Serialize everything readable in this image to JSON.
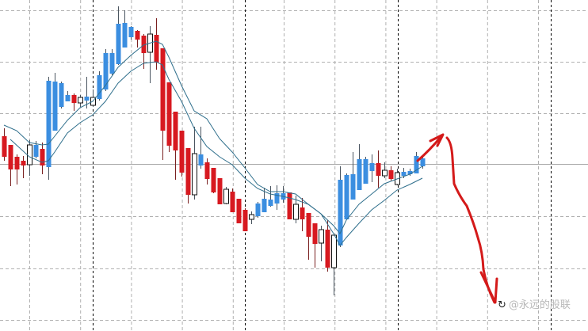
{
  "chart_data": {
    "type": "candlestick",
    "title": "",
    "xlabel": "",
    "ylabel": "",
    "grid": true,
    "ylim": [
      0,
      418
    ],
    "colors": {
      "bull": "#3b8ee0",
      "bear": "#d71920",
      "hollow": "#ffffff",
      "moving_average": "#2f6f8c",
      "grid": "#b0b0b0",
      "period_separator": "#000000",
      "annotation": "#d41a1a"
    },
    "candles_ohlc": [
      [
        246,
        256,
        215,
        220
      ],
      [
        235,
        235,
        183,
        204
      ],
      [
        220,
        223,
        185,
        204
      ],
      [
        215,
        221,
        193,
        209
      ],
      [
        210,
        241,
        196,
        235
      ],
      [
        220,
        240,
        218,
        235
      ],
      [
        230,
        238,
        198,
        209
      ],
      [
        207,
        321,
        191,
        316
      ],
      [
        253,
        326,
        253,
        315
      ],
      [
        283,
        315,
        281,
        313
      ],
      [
        290,
        303,
        290,
        298
      ],
      [
        298,
        300,
        278,
        288
      ],
      [
        288,
        298,
        283,
        295
      ],
      [
        291,
        321,
        281,
        296
      ],
      [
        285,
        305,
        283,
        295
      ],
      [
        293,
        328,
        291,
        323
      ],
      [
        305,
        356,
        303,
        351
      ],
      [
        325,
        356,
        323,
        351
      ],
      [
        337,
        410,
        336,
        388
      ],
      [
        358,
        405,
        358,
        389
      ],
      [
        371,
        385,
        368,
        384
      ],
      [
        379,
        380,
        358,
        368
      ],
      [
        373,
        375,
        331,
        351
      ],
      [
        352,
        385,
        313,
        375
      ],
      [
        374,
        395,
        330,
        339
      ],
      [
        357,
        357,
        216,
        253
      ],
      [
        314,
        314,
        226,
        234
      ],
      [
        277,
        277,
        191,
        228
      ],
      [
        253,
        253,
        195,
        200
      ],
      [
        231,
        231,
        161,
        172
      ],
      [
        172,
        258,
        166,
        224
      ],
      [
        209,
        258,
        205,
        223
      ],
      [
        213,
        218,
        185,
        192
      ],
      [
        206,
        206,
        174,
        175
      ],
      [
        193,
        193,
        160,
        160
      ],
      [
        161,
        182,
        160,
        179
      ],
      [
        176,
        180,
        150,
        150
      ],
      [
        167,
        167,
        136,
        136
      ],
      [
        153,
        155,
        126,
        126
      ],
      [
        141,
        151,
        135,
        147
      ],
      [
        145,
        163,
        143,
        161
      ],
      [
        150,
        181,
        150,
        167
      ],
      [
        158,
        183,
        157,
        166
      ],
      [
        161,
        184,
        153,
        174
      ],
      [
        166,
        183,
        162,
        174
      ],
      [
        175,
        175,
        141,
        141
      ],
      [
        141,
        171,
        136,
        160
      ],
      [
        156,
        168,
        126,
        141
      ],
      [
        149,
        149,
        90,
        119
      ],
      [
        136,
        136,
        80,
        110
      ],
      [
        111,
        133,
        88,
        128
      ],
      [
        128,
        140,
        75,
        80
      ],
      [
        80,
        121,
        45,
        121
      ],
      [
        108,
        208,
        106,
        191
      ],
      [
        141,
        199,
        141,
        197
      ],
      [
        166,
        226,
        166,
        198
      ],
      [
        178,
        236,
        178,
        217
      ],
      [
        186,
        220,
        186,
        217
      ],
      [
        202,
        223,
        188,
        212
      ],
      [
        212,
        228,
        181,
        196
      ],
      [
        196,
        213,
        193,
        203
      ],
      [
        203,
        208,
        190,
        192
      ],
      [
        185,
        205,
        184,
        200
      ],
      [
        196,
        206,
        193,
        201
      ],
      [
        198,
        205,
        196,
        202
      ],
      [
        199,
        226,
        199,
        221
      ],
      [
        208,
        222,
        205,
        218
      ]
    ],
    "hollow_candles": [
      4,
      12,
      14,
      23,
      30,
      35,
      39,
      46,
      50,
      52,
      60,
      62
    ],
    "moving_averages": [
      {
        "points": [
          [
            0,
            260
          ],
          [
            2,
            253
          ],
          [
            4,
            238
          ],
          [
            6,
            235
          ],
          [
            7,
            236
          ],
          [
            8,
            246
          ],
          [
            10,
            266
          ],
          [
            12,
            282
          ],
          [
            14,
            290
          ],
          [
            16,
            310
          ],
          [
            18,
            333
          ],
          [
            20,
            348
          ],
          [
            22,
            361
          ],
          [
            24,
            366
          ],
          [
            25,
            362
          ],
          [
            26,
            346
          ],
          [
            28,
            310
          ],
          [
            30,
            278
          ],
          [
            32,
            268
          ],
          [
            34,
            243
          ],
          [
            36,
            226
          ],
          [
            38,
            206
          ],
          [
            40,
            185
          ],
          [
            42,
            176
          ],
          [
            44,
            176
          ],
          [
            46,
            173
          ],
          [
            48,
            160
          ],
          [
            50,
            148
          ],
          [
            52,
            133
          ],
          [
            53,
            123
          ],
          [
            54,
            140
          ],
          [
            56,
            160
          ],
          [
            58,
            173
          ],
          [
            60,
            186
          ],
          [
            62,
            192
          ],
          [
            64,
            198
          ],
          [
            66,
            208
          ]
        ]
      },
      {
        "points": [
          [
            1,
            242
          ],
          [
            4,
            220
          ],
          [
            6,
            213
          ],
          [
            7,
            215
          ],
          [
            8,
            226
          ],
          [
            10,
            250
          ],
          [
            12,
            263
          ],
          [
            14,
            273
          ],
          [
            16,
            290
          ],
          [
            18,
            313
          ],
          [
            20,
            328
          ],
          [
            22,
            338
          ],
          [
            24,
            340
          ],
          [
            25,
            336
          ],
          [
            26,
            318
          ],
          [
            28,
            290
          ],
          [
            30,
            256
          ],
          [
            32,
            233
          ],
          [
            34,
            220
          ],
          [
            36,
            210
          ],
          [
            38,
            193
          ],
          [
            40,
            180
          ],
          [
            42,
            173
          ],
          [
            44,
            170
          ],
          [
            46,
            166
          ],
          [
            48,
            160
          ],
          [
            50,
            148
          ],
          [
            52,
            123
          ],
          [
            53,
            108
          ],
          [
            54,
            118
          ],
          [
            56,
            136
          ],
          [
            58,
            153
          ],
          [
            60,
            165
          ],
          [
            62,
            178
          ],
          [
            64,
            185
          ],
          [
            66,
            193
          ]
        ]
      }
    ],
    "horizontal_gridlines": [
      405,
      340,
      275,
      145,
      79,
      14
    ],
    "current_price_line": 211
  },
  "watermark": {
    "logo_glyph": "↻",
    "text": "@永远的股联"
  }
}
